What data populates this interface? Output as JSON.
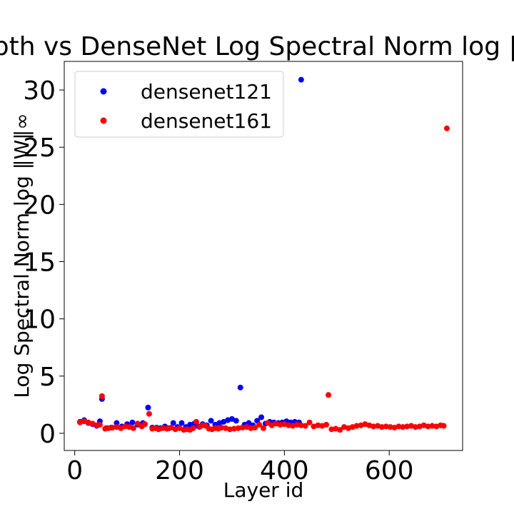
{
  "chart_data": {
    "type": "scatter",
    "title": "Depth vs DenseNet Log Spectral Norm log ‖W‖∞",
    "xlabel": "Layer id",
    "ylabel": "Log Spectral Norm log ‖W‖∞",
    "xlim": [
      -20,
      740
    ],
    "ylim": [
      -1.5,
      32.5
    ],
    "x_ticks": [
      0,
      200,
      400,
      600
    ],
    "y_ticks": [
      0,
      5,
      10,
      15,
      20,
      25,
      30
    ],
    "grid": false,
    "legend_position": "top-left",
    "series": [
      {
        "name": "densenet121",
        "color": "#0000ff",
        "points": [
          [
            10,
            1.0
          ],
          [
            18,
            1.15
          ],
          [
            26,
            0.9
          ],
          [
            34,
            0.8
          ],
          [
            42,
            0.65
          ],
          [
            48,
            1.05
          ],
          [
            52,
            3.0
          ],
          [
            60,
            0.45
          ],
          [
            70,
            0.5
          ],
          [
            80,
            0.9
          ],
          [
            90,
            0.6
          ],
          [
            100,
            0.8
          ],
          [
            110,
            0.95
          ],
          [
            120,
            0.75
          ],
          [
            130,
            0.9
          ],
          [
            140,
            2.25
          ],
          [
            148,
            0.5
          ],
          [
            156,
            0.5
          ],
          [
            164,
            0.45
          ],
          [
            172,
            0.6
          ],
          [
            180,
            0.45
          ],
          [
            188,
            0.9
          ],
          [
            196,
            0.55
          ],
          [
            204,
            0.9
          ],
          [
            212,
            0.55
          ],
          [
            220,
            0.75
          ],
          [
            228,
            0.85
          ],
          [
            236,
            0.6
          ],
          [
            244,
            0.8
          ],
          [
            252,
            0.7
          ],
          [
            260,
            1.1
          ],
          [
            268,
            0.75
          ],
          [
            276,
            0.9
          ],
          [
            284,
            1.0
          ],
          [
            292,
            1.15
          ],
          [
            300,
            1.25
          ],
          [
            308,
            1.1
          ],
          [
            316,
            4.0
          ],
          [
            324,
            0.75
          ],
          [
            332,
            0.9
          ],
          [
            340,
            0.7
          ],
          [
            348,
            1.1
          ],
          [
            356,
            1.4
          ],
          [
            364,
            0.85
          ],
          [
            372,
            1.0
          ],
          [
            380,
            0.95
          ],
          [
            388,
            0.9
          ],
          [
            396,
            0.95
          ],
          [
            404,
            1.05
          ],
          [
            412,
            0.95
          ],
          [
            420,
            1.0
          ],
          [
            428,
            0.95
          ],
          [
            432,
            30.9
          ]
        ]
      },
      {
        "name": "densenet161",
        "color": "#ff0000",
        "points": [
          [
            10,
            0.95
          ],
          [
            18,
            1.05
          ],
          [
            26,
            0.95
          ],
          [
            34,
            0.85
          ],
          [
            42,
            0.7
          ],
          [
            48,
            0.75
          ],
          [
            52,
            3.25
          ],
          [
            58,
            0.4
          ],
          [
            64,
            0.45
          ],
          [
            72,
            0.5
          ],
          [
            80,
            0.55
          ],
          [
            88,
            0.45
          ],
          [
            96,
            0.6
          ],
          [
            104,
            0.55
          ],
          [
            112,
            0.45
          ],
          [
            120,
            0.85
          ],
          [
            128,
            0.6
          ],
          [
            134,
            0.8
          ],
          [
            142,
            1.7
          ],
          [
            148,
            0.4
          ],
          [
            154,
            0.45
          ],
          [
            160,
            0.35
          ],
          [
            168,
            0.45
          ],
          [
            176,
            0.4
          ],
          [
            184,
            0.5
          ],
          [
            192,
            0.35
          ],
          [
            200,
            0.45
          ],
          [
            208,
            0.3
          ],
          [
            214,
            0.35
          ],
          [
            220,
            0.3
          ],
          [
            226,
            0.45
          ],
          [
            232,
            1.0
          ],
          [
            238,
            0.55
          ],
          [
            244,
            0.7
          ],
          [
            250,
            0.65
          ],
          [
            256,
            0.4
          ],
          [
            262,
            0.35
          ],
          [
            268,
            0.45
          ],
          [
            274,
            0.4
          ],
          [
            280,
            0.5
          ],
          [
            288,
            0.45
          ],
          [
            296,
            0.35
          ],
          [
            304,
            0.4
          ],
          [
            312,
            0.45
          ],
          [
            320,
            0.5
          ],
          [
            328,
            0.55
          ],
          [
            336,
            0.45
          ],
          [
            344,
            0.5
          ],
          [
            352,
            0.75
          ],
          [
            360,
            0.45
          ],
          [
            368,
            0.9
          ],
          [
            376,
            0.7
          ],
          [
            384,
            0.85
          ],
          [
            392,
            0.75
          ],
          [
            400,
            0.8
          ],
          [
            408,
            0.7
          ],
          [
            416,
            0.65
          ],
          [
            424,
            0.75
          ],
          [
            432,
            0.7
          ],
          [
            440,
            0.65
          ],
          [
            448,
            0.95
          ],
          [
            456,
            0.6
          ],
          [
            464,
            0.7
          ],
          [
            472,
            0.65
          ],
          [
            480,
            0.75
          ],
          [
            484,
            3.35
          ],
          [
            490,
            0.35
          ],
          [
            498,
            0.4
          ],
          [
            506,
            0.3
          ],
          [
            514,
            0.55
          ],
          [
            522,
            0.45
          ],
          [
            530,
            0.55
          ],
          [
            538,
            0.65
          ],
          [
            546,
            0.7
          ],
          [
            554,
            0.8
          ],
          [
            562,
            0.7
          ],
          [
            570,
            0.6
          ],
          [
            578,
            0.65
          ],
          [
            586,
            0.55
          ],
          [
            594,
            0.6
          ],
          [
            602,
            0.55
          ],
          [
            610,
            0.5
          ],
          [
            618,
            0.6
          ],
          [
            626,
            0.55
          ],
          [
            634,
            0.6
          ],
          [
            642,
            0.65
          ],
          [
            650,
            0.55
          ],
          [
            658,
            0.6
          ],
          [
            666,
            0.7
          ],
          [
            674,
            0.6
          ],
          [
            682,
            0.65
          ],
          [
            690,
            0.6
          ],
          [
            698,
            0.7
          ],
          [
            704,
            0.65
          ],
          [
            710,
            26.65
          ]
        ]
      }
    ]
  }
}
